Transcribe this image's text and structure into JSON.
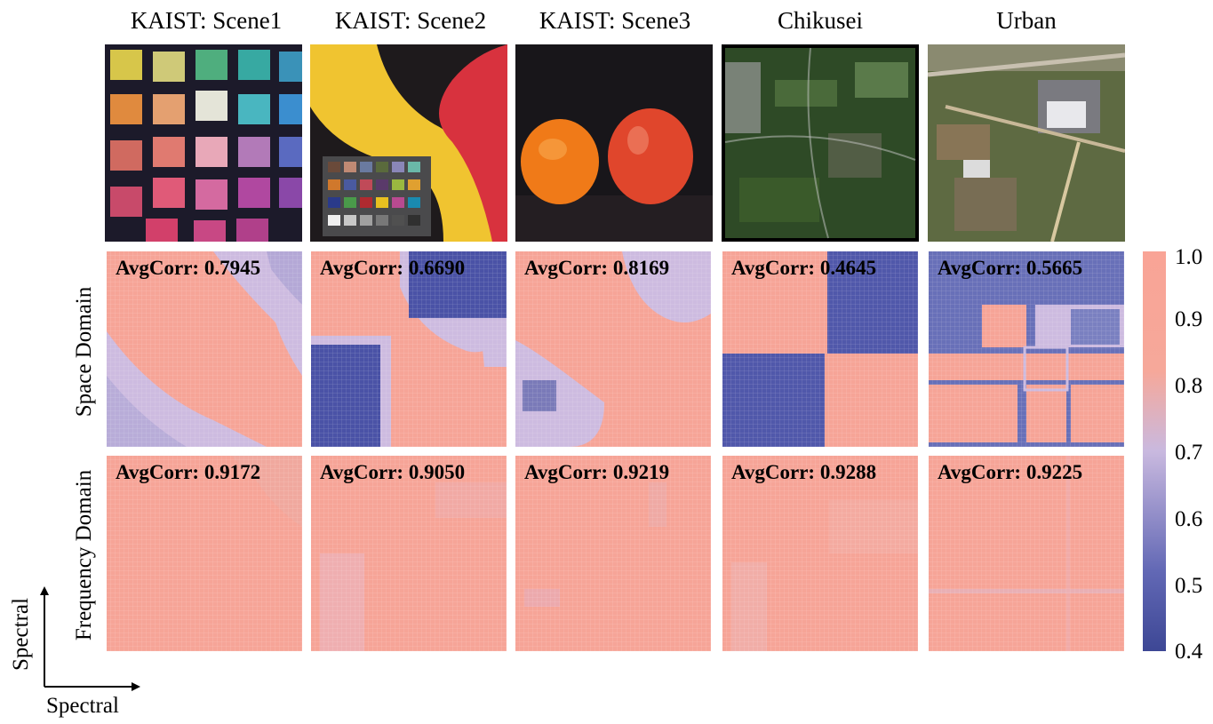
{
  "columns": [
    {
      "title": "KAIST: Scene1",
      "space_avgcorr": "AvgCorr: 0.7945",
      "freq_avgcorr": "AvgCorr: 0.9172"
    },
    {
      "title": "KAIST: Scene2",
      "space_avgcorr": "AvgCorr: 0.6690",
      "freq_avgcorr": "AvgCorr: 0.9050"
    },
    {
      "title": "KAIST: Scene3",
      "space_avgcorr": "AvgCorr: 0.8169",
      "freq_avgcorr": "AvgCorr: 0.9219"
    },
    {
      "title": "Chikusei",
      "space_avgcorr": "AvgCorr: 0.4645",
      "freq_avgcorr": "AvgCorr: 0.9288"
    },
    {
      "title": "Urban",
      "space_avgcorr": "AvgCorr: 0.5665",
      "freq_avgcorr": "AvgCorr: 0.9225"
    }
  ],
  "rows": {
    "space": "Space Domain",
    "frequency": "Frequency Domain"
  },
  "axes": {
    "x": "Spectral",
    "y": "Spectral"
  },
  "colorbar": {
    "ticks": [
      "1.0",
      "0.9",
      "0.8",
      "0.7",
      "0.6",
      "0.5",
      "0.4"
    ]
  },
  "colors": {
    "high": "#f9a496",
    "mid": "#c9b9df",
    "low": "#3d4795"
  },
  "chart_data": {
    "type": "heatmap",
    "description_rows": [
      "Space Domain",
      "Frequency Domain"
    ],
    "columns": [
      "KAIST: Scene1",
      "KAIST: Scene2",
      "KAIST: Scene3",
      "Chikusei",
      "Urban"
    ],
    "avg_corr": {
      "Space Domain": [
        0.7945,
        0.669,
        0.8169,
        0.4645,
        0.5665
      ],
      "Frequency Domain": [
        0.9172,
        0.905,
        0.9219,
        0.9288,
        0.9225
      ]
    },
    "xlabel": "Spectral",
    "ylabel": "Spectral",
    "color_range": [
      0.4,
      1.0
    ]
  }
}
